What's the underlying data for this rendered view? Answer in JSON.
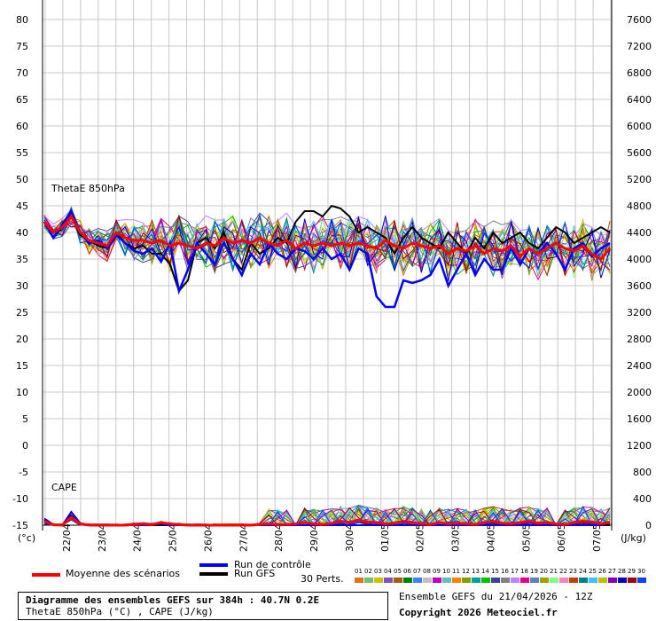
{
  "chart_data": {
    "type": "line",
    "title": "Diagramme des ensembles GEFS sur 384h : 40.7N 0.2E",
    "subtitle": "ThetaE 850hPa (°C) , CAPE (J/kg)",
    "left_axis_unit": "(°c)",
    "right_axis_unit": "(J/kg)",
    "left_axis_ticks": [
      80,
      75,
      70,
      65,
      60,
      55,
      50,
      45,
      40,
      35,
      30,
      25,
      20,
      15,
      10,
      5,
      0,
      -5,
      -10,
      -15
    ],
    "right_axis_ticks": [
      7600,
      7200,
      6800,
      6400,
      6000,
      5600,
      5200,
      4800,
      4400,
      4000,
      3600,
      3200,
      2800,
      2400,
      2000,
      1600,
      1200,
      800,
      400,
      0
    ],
    "ylim": [
      -15,
      80
    ],
    "dates": [
      "22/04",
      "23/04",
      "24/04",
      "25/04",
      "26/04",
      "27/04",
      "28/04",
      "29/04",
      "30/04",
      "01/05",
      "02/05",
      "03/05",
      "04/05",
      "05/05",
      "06/05",
      "07/05"
    ],
    "panel_labels": [
      "ThetaE 850hPa",
      "CAPE"
    ],
    "theta_e": {
      "mean": [
        42,
        40,
        41,
        43,
        40,
        38.5,
        38,
        37.5,
        40,
        39,
        38.5,
        38.5,
        38,
        38.5,
        37.5,
        38,
        37.5,
        37,
        38,
        37.5,
        39,
        38,
        38.5,
        38,
        39,
        38,
        37.5,
        38.5,
        37,
        38,
        37.5,
        38,
        37.5,
        38,
        37.5,
        38,
        37.5,
        37,
        38.5,
        37.5,
        37,
        38,
        37.5,
        37,
        37.5,
        36,
        37,
        36.5,
        37.5,
        36,
        37,
        36.5,
        37.5,
        35.5,
        37,
        36,
        37,
        38,
        37,
        36.5,
        37.5,
        36,
        35,
        37
      ],
      "control": [
        42,
        39,
        41.5,
        44,
        40,
        38,
        38.5,
        37,
        39.5,
        38,
        36.5,
        36,
        37,
        34.5,
        38,
        29,
        33,
        38,
        36,
        34,
        38,
        35,
        32,
        36,
        34,
        38,
        36,
        35,
        37,
        36.5,
        35,
        37,
        35,
        36,
        33,
        37,
        36,
        28,
        26,
        26,
        31,
        30.5,
        31,
        32,
        35,
        30,
        33,
        36,
        32,
        35,
        33,
        33,
        37,
        34,
        37,
        36,
        38,
        36,
        33,
        37,
        38,
        35.5,
        37,
        38
      ],
      "gfs": [
        42,
        39,
        41,
        43,
        39.5,
        38.5,
        37.5,
        37,
        40,
        38,
        37,
        37.5,
        36,
        36,
        34,
        29,
        31,
        38,
        39,
        37,
        40,
        35,
        33,
        38,
        36,
        37,
        39,
        38,
        42,
        44,
        44,
        43,
        45,
        44.5,
        43,
        40,
        41,
        40,
        39,
        36,
        39,
        41,
        39,
        38,
        37,
        40,
        38,
        36,
        39,
        37,
        40,
        38,
        39,
        40,
        38,
        37,
        39,
        41,
        40,
        38,
        39,
        40,
        41,
        40
      ]
    },
    "cape": {
      "mean": [
        60,
        5,
        0,
        120,
        20,
        0,
        0,
        0,
        0,
        0,
        10,
        20,
        10,
        40,
        20,
        10,
        0,
        0,
        0,
        0,
        0,
        0,
        0,
        0,
        10,
        20,
        10,
        10,
        20,
        40,
        20,
        10,
        30,
        60,
        40,
        80,
        50,
        40,
        20,
        30,
        60,
        40,
        20,
        10,
        40,
        20,
        30,
        20,
        10,
        40,
        60,
        30,
        20,
        40,
        60,
        30,
        40,
        20,
        10,
        40,
        60,
        50,
        20,
        40
      ],
      "control": [
        100,
        10,
        0,
        200,
        30,
        0,
        0,
        0,
        0,
        0,
        0,
        0,
        0,
        20,
        0,
        0,
        0,
        0,
        0,
        0,
        0,
        0,
        0,
        0,
        0,
        0,
        0,
        0,
        0,
        0,
        0,
        0,
        0,
        0,
        0,
        0,
        0,
        0,
        0,
        0,
        0,
        0,
        0,
        0,
        0,
        0,
        0,
        0,
        0,
        0,
        0,
        0,
        0,
        0,
        0,
        0,
        0,
        0,
        0,
        0,
        0,
        0,
        0,
        40
      ],
      "gfs": [
        80,
        0,
        0,
        150,
        10,
        0,
        0,
        0,
        0,
        0,
        0,
        0,
        0,
        0,
        0,
        0,
        0,
        0,
        0,
        0,
        0,
        0,
        0,
        0,
        0,
        0,
        0,
        0,
        0,
        0,
        0,
        0,
        0,
        0,
        0,
        0,
        0,
        0,
        0,
        0,
        0,
        0,
        0,
        0,
        0,
        0,
        0,
        0,
        0,
        0,
        0,
        0,
        0,
        0,
        0,
        0,
        0,
        0,
        0,
        0,
        0,
        0,
        0,
        0
      ]
    },
    "legend": {
      "mean_label": "Moyenne des scénarios",
      "control_label": "Run de contrôle",
      "gfs_label": "Run GFS",
      "perts_label": "30 Perts.",
      "mean_color": "#ff0000",
      "control_color": "#0000ff",
      "gfs_color": "#000000"
    },
    "pert_numbers": [
      "01",
      "02",
      "03",
      "04",
      "05",
      "06",
      "07",
      "08",
      "09",
      "10",
      "11",
      "12",
      "13",
      "14",
      "15",
      "16",
      "17",
      "18",
      "19",
      "20",
      "21",
      "22",
      "23",
      "24",
      "25",
      "26",
      "27",
      "28",
      "29",
      "30"
    ],
    "pert_colors": [
      "#e07020",
      "#70c070",
      "#d0c000",
      "#8050c0",
      "#a06000",
      "#008000",
      "#4080ff",
      "#c0c0c0",
      "#c000c0",
      "#60c0c0",
      "#ff8000",
      "#80a000",
      "#00a0a0",
      "#00c000",
      "#4040a0",
      "#808080",
      "#c080ff",
      "#e00080",
      "#6080c0",
      "#a0a000",
      "#80ff80",
      "#ff80c0",
      "#c04000",
      "#008080",
      "#40c0ff",
      "#c0c000",
      "#8000c0",
      "#0000c0",
      "#a00000",
      "#0040ff"
    ]
  },
  "info": {
    "ensemble_date": "Ensemble GEFS du 21/04/2026 - 12Z",
    "copyright": "Copyright 2026 Meteociel.fr"
  }
}
